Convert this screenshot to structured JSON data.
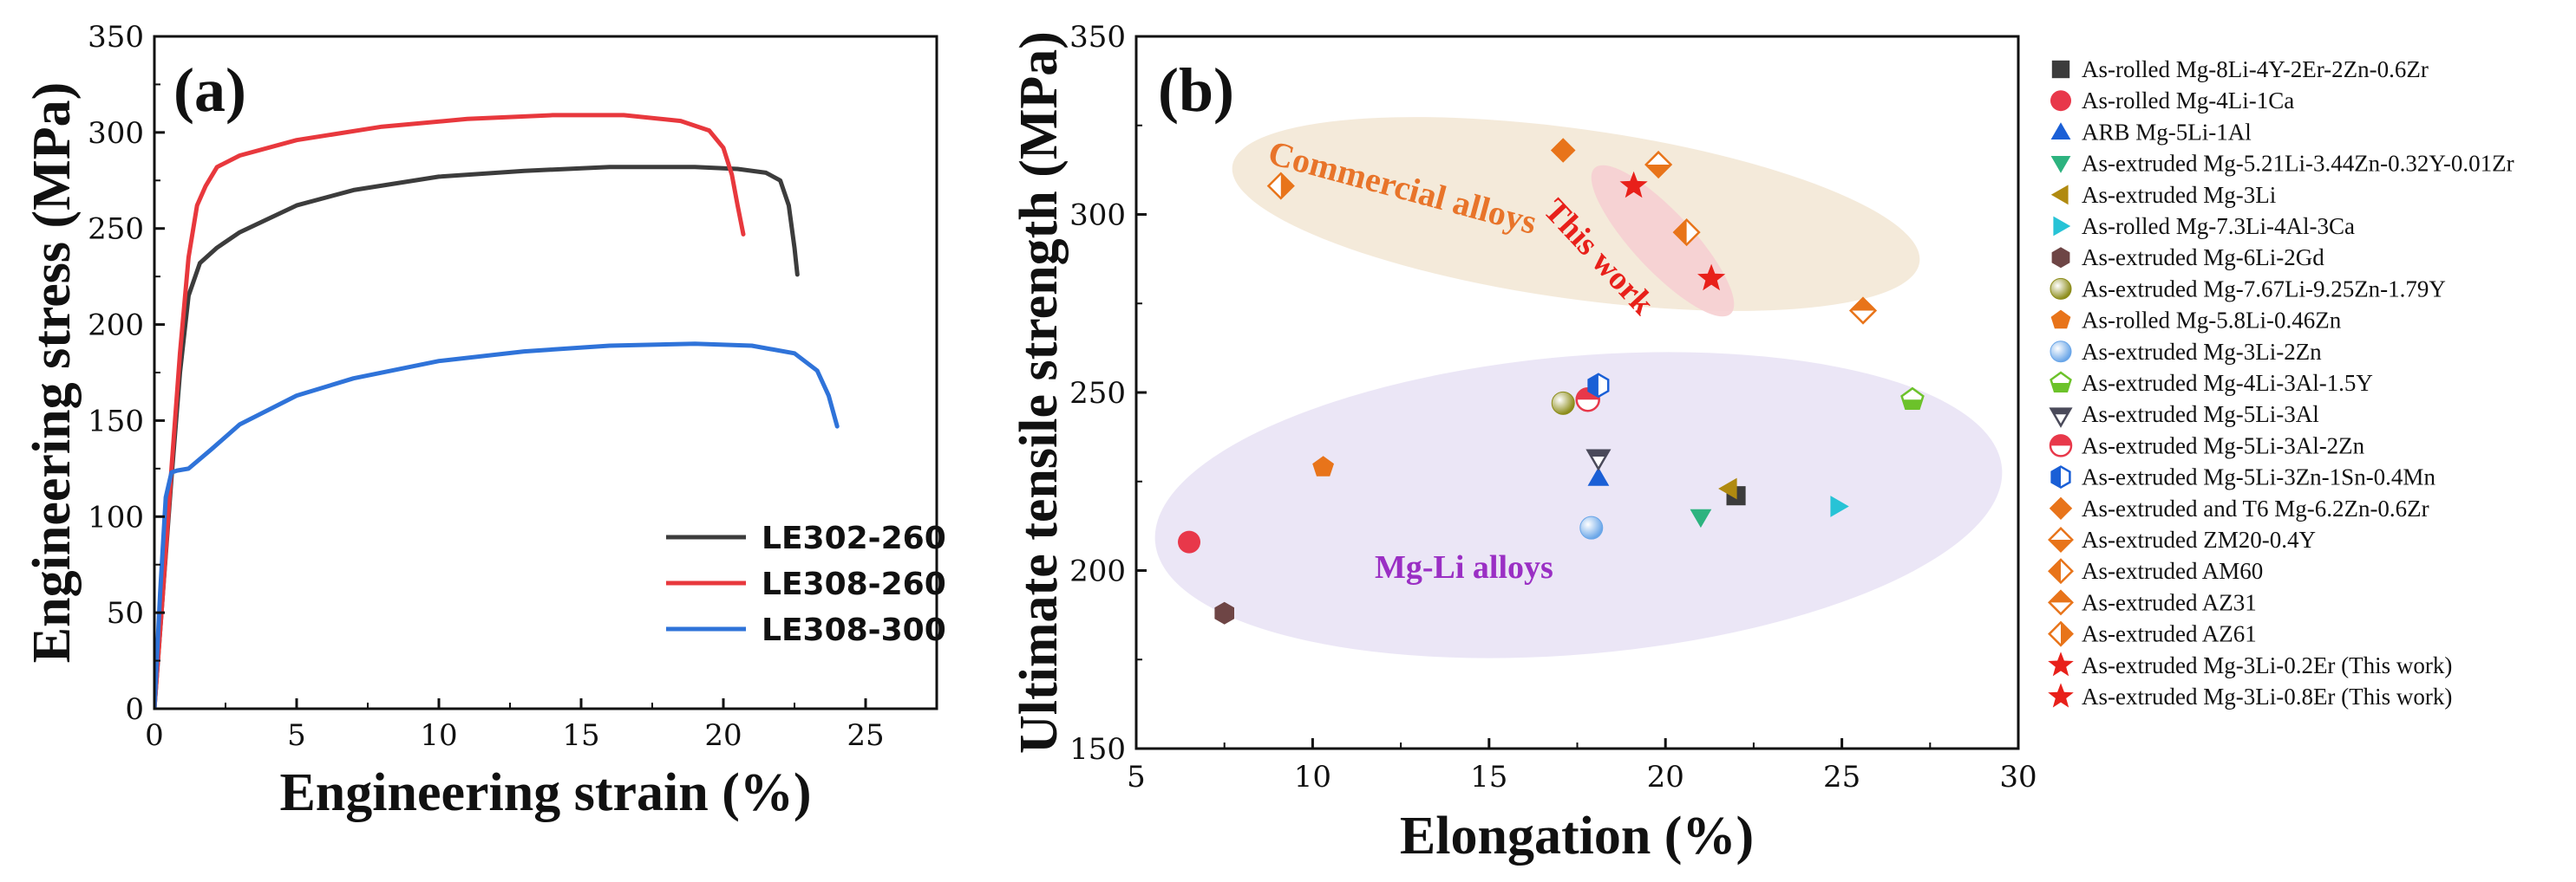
{
  "chart_data": [
    {
      "panel": "(a)",
      "type": "line",
      "xlabel": "Engineering strain (%)",
      "ylabel": "Engineering stress (MPa)",
      "xlim": [
        0,
        27.5
      ],
      "ylim": [
        0,
        350
      ],
      "xticks": [
        0,
        5,
        10,
        15,
        20,
        25
      ],
      "yticks": [
        0,
        50,
        100,
        150,
        200,
        250,
        300,
        350
      ],
      "legend_position": "lower-right",
      "series": [
        {
          "name": "LE302-260",
          "color": "#3c3c3c",
          "x": [
            0,
            0.3,
            0.6,
            0.9,
            1.2,
            1.6,
            2.2,
            3,
            5,
            7,
            10,
            13,
            16,
            19,
            20.5,
            21.5,
            22,
            22.3,
            22.5,
            22.6
          ],
          "y": [
            0,
            60,
            120,
            175,
            215,
            232,
            240,
            248,
            262,
            270,
            277,
            280,
            282,
            282,
            281,
            279,
            275,
            262,
            240,
            226
          ]
        },
        {
          "name": "LE308-260",
          "color": "#e8383d",
          "x": [
            0,
            0.3,
            0.6,
            0.9,
            1.2,
            1.5,
            1.8,
            2.2,
            3,
            5,
            8,
            11,
            14,
            16.5,
            18.5,
            19.5,
            20,
            20.3,
            20.5,
            20.7
          ],
          "y": [
            0,
            60,
            125,
            185,
            235,
            262,
            272,
            282,
            288,
            296,
            303,
            307,
            309,
            309,
            306,
            301,
            292,
            278,
            262,
            247
          ]
        },
        {
          "name": "LE308-300",
          "color": "#2f73d9",
          "x": [
            0,
            0.2,
            0.4,
            0.6,
            0.8,
            1.2,
            2,
            3,
            5,
            7,
            10,
            13,
            16,
            19,
            21,
            22.5,
            23.3,
            23.7,
            24
          ],
          "y": [
            0,
            60,
            110,
            123,
            124,
            125,
            135,
            148,
            163,
            172,
            181,
            186,
            189,
            190,
            189,
            185,
            176,
            163,
            147
          ]
        }
      ]
    },
    {
      "panel": "(b)",
      "type": "scatter",
      "xlabel": "Elongation (%)",
      "ylabel": "Ultimate tensile strength (MPa)",
      "xlim": [
        5,
        30
      ],
      "ylim": [
        150,
        350
      ],
      "xticks": [
        5,
        10,
        15,
        20,
        25,
        30
      ],
      "yticks": [
        150,
        200,
        250,
        300,
        350
      ],
      "annotations": [
        {
          "text": "Commercial alloys",
          "color": "#e8742a"
        },
        {
          "text": "This work",
          "color": "#e8201a"
        },
        {
          "text": "Mg-Li alloys",
          "color": "#9a2fc4"
        }
      ],
      "series": [
        {
          "name": "As-rolled Mg-8Li-4Y-2Er-2Zn-0.6Zr",
          "marker": "square",
          "color": "#3c3c3c",
          "x": [
            22.0
          ],
          "y": [
            221
          ]
        },
        {
          "name": "As-rolled Mg-4Li-1Ca",
          "marker": "circle",
          "color": "#e8384a",
          "x": [
            6.5
          ],
          "y": [
            208
          ]
        },
        {
          "name": "ARB Mg-5Li-1Al",
          "marker": "triangle-up",
          "color": "#1a5fd6",
          "x": [
            18.1
          ],
          "y": [
            226
          ]
        },
        {
          "name": "As-extruded Mg-5.21Li-3.44Zn-0.32Y-0.01Zr",
          "marker": "triangle-down",
          "color": "#2db37f",
          "x": [
            21.0
          ],
          "y": [
            215
          ]
        },
        {
          "name": "As-extruded Mg-3Li",
          "marker": "triangle-left",
          "color": "#b08a10",
          "x": [
            21.8
          ],
          "y": [
            223
          ]
        },
        {
          "name": "As-rolled Mg-7.3Li-4Al-3Ca",
          "marker": "triangle-right",
          "color": "#27c3d6",
          "x": [
            24.9
          ],
          "y": [
            218
          ]
        },
        {
          "name": "As-extruded Mg-6Li-2Gd",
          "marker": "hexagon",
          "color": "#6e4545",
          "x": [
            7.5
          ],
          "y": [
            188
          ]
        },
        {
          "name": "As-extruded Mg-7.67Li-9.25Zn-1.79Y",
          "marker": "sphere",
          "color": "#8c8c1a",
          "x": [
            17.1
          ],
          "y": [
            247
          ]
        },
        {
          "name": "As-rolled Mg-5.8Li-0.46Zn",
          "marker": "pentagon",
          "color": "#e8741a",
          "x": [
            10.3
          ],
          "y": [
            229
          ]
        },
        {
          "name": "As-extruded Mg-3Li-2Zn",
          "marker": "sphere",
          "color": "#6aa6e8",
          "x": [
            17.9
          ],
          "y": [
            212
          ]
        },
        {
          "name": "As-extruded Mg-4Li-3Al-1.5Y",
          "marker": "pentagon-half",
          "color": "#6cc22a",
          "x": [
            27.0
          ],
          "y": [
            248
          ]
        },
        {
          "name": "As-extruded Mg-5Li-3Al",
          "marker": "triangle-down-half",
          "color": "#4a4a5a",
          "x": [
            18.1
          ],
          "y": [
            232
          ]
        },
        {
          "name": "As-extruded Mg-5Li-3Al-2Zn",
          "marker": "circle-half",
          "color": "#e8384a",
          "x": [
            17.8
          ],
          "y": [
            248
          ]
        },
        {
          "name": "As-extruded Mg-5Li-3Zn-1Sn-0.4Mn",
          "marker": "hexagon-half",
          "color": "#1a5fd6",
          "x": [
            18.1
          ],
          "y": [
            252
          ]
        },
        {
          "name": "As-extruded and T6 Mg-6.2Zn-0.6Zr",
          "marker": "diamond",
          "color": "#e8741a",
          "x": [
            17.1
          ],
          "y": [
            318
          ]
        },
        {
          "name": "As-extruded ZM20-0.4Y",
          "marker": "diamond-half-bottom",
          "color": "#e8741a",
          "x": [
            19.8
          ],
          "y": [
            314
          ]
        },
        {
          "name": "As-extruded AM60",
          "marker": "diamond-half-left",
          "color": "#e8741a",
          "x": [
            20.6
          ],
          "y": [
            295
          ]
        },
        {
          "name": "As-extruded AZ31",
          "marker": "diamond-half-top",
          "color": "#e8741a",
          "x": [
            25.6
          ],
          "y": [
            273
          ]
        },
        {
          "name": "As-extruded AZ61",
          "marker": "diamond-half-right",
          "color": "#e8741a",
          "x": [
            9.1
          ],
          "y": [
            308
          ]
        },
        {
          "name": "As-extruded Mg-3Li-0.2Er (This work)",
          "marker": "star",
          "color": "#e8201a",
          "x": [
            19.1
          ],
          "y": [
            308
          ]
        },
        {
          "name": "As-extruded Mg-3Li-0.8Er (This work)",
          "marker": "star",
          "color": "#e8201a",
          "x": [
            21.3
          ],
          "y": [
            282
          ]
        }
      ]
    }
  ]
}
